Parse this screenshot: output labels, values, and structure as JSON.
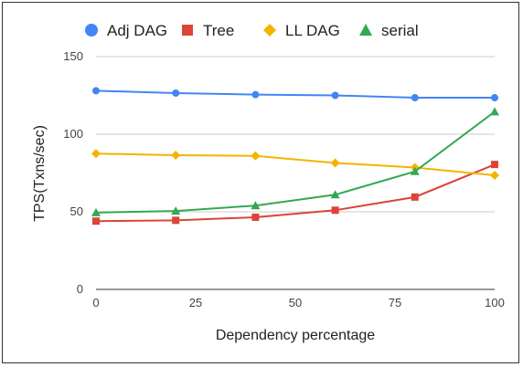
{
  "chart_data": {
    "type": "line",
    "title": "",
    "xlabel": "Dependency percentage",
    "ylabel": "TPS(Txns/sec)",
    "x": [
      0,
      20,
      40,
      60,
      80,
      100
    ],
    "xlim": [
      0,
      100
    ],
    "ylim": [
      0,
      150
    ],
    "xticks": [
      "0",
      "25",
      "50",
      "75",
      "100"
    ],
    "yticks": [
      "0",
      "50",
      "100",
      "150"
    ],
    "grid": "horizontal",
    "legend": "top",
    "series": [
      {
        "name": "Adj DAG",
        "color": "#4285f4",
        "marker": "circle",
        "values": [
          128,
          126.5,
          125.5,
          125,
          123.5,
          123.5
        ]
      },
      {
        "name": "Tree",
        "color": "#db4437",
        "marker": "square",
        "values": [
          44,
          44.5,
          46.5,
          51,
          59.5,
          80.5
        ]
      },
      {
        "name": "LL DAG",
        "color": "#f4b400",
        "marker": "diamond",
        "values": [
          87.5,
          86.5,
          86,
          81.5,
          78.5,
          73.5
        ]
      },
      {
        "name": "serial",
        "color": "#34a853",
        "marker": "triangle",
        "values": [
          49.5,
          50.5,
          54,
          61,
          76,
          114.5
        ]
      }
    ]
  }
}
